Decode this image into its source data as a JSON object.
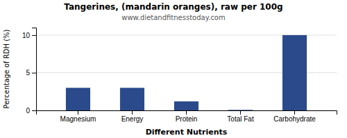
{
  "chart_data": {
    "type": "bar",
    "title": "Tangerines, (mandarin oranges), raw per 100g",
    "subtitle": "www.dietandfitnesstoday.com",
    "categories": [
      "Magnesium",
      "Energy",
      "Protein",
      "Total Fat",
      "Carbohydrate"
    ],
    "values": [
      3.0,
      3.0,
      1.2,
      0.07,
      10.0
    ],
    "color": "#2b4a8b",
    "xlabel": "Different Nutrients",
    "ylabel": "Percentage of RDH (%)",
    "ylim": [
      0,
      11
    ],
    "yticks": [
      0,
      5,
      10
    ],
    "grid": true
  }
}
